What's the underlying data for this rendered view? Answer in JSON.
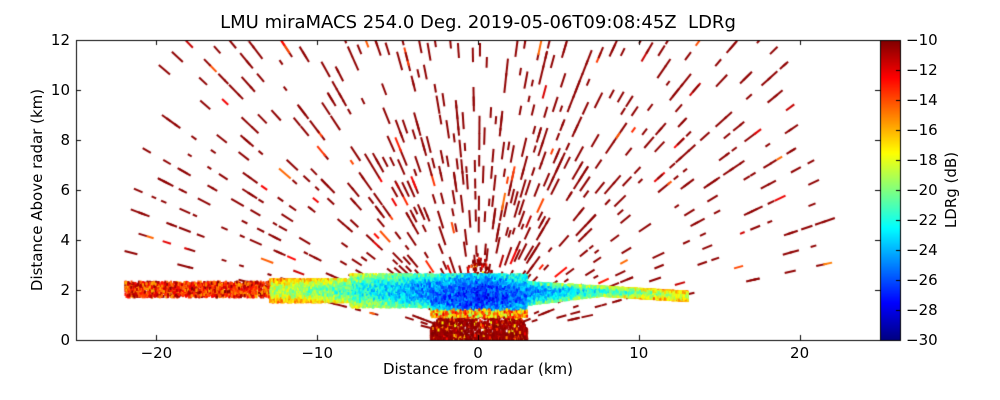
{
  "chart_data": {
    "type": "heatmap",
    "subtype": "radar RHI scan",
    "title": "LMU miraMACS 254.0 Deg. 2019-05-06T09:08:45Z  LDRg",
    "xlabel": "Distance from radar (km)",
    "ylabel": "Distance Above radar  (km)",
    "xlim": [
      -25,
      25
    ],
    "ylim": [
      0,
      12
    ],
    "xticks": [
      -20,
      -10,
      0,
      10,
      20
    ],
    "xtick_labels": [
      "−20",
      "−10",
      "0",
      "10",
      "20"
    ],
    "yticks": [
      0,
      2,
      4,
      6,
      8,
      10,
      12
    ],
    "ytick_labels": [
      "0",
      "2",
      "4",
      "6",
      "8",
      "10",
      "12"
    ],
    "grid": false,
    "colorbar": {
      "label": "LDRg (dB)",
      "colormap": "jet",
      "range": [
        -30,
        -10
      ],
      "ticks": [
        -10,
        -12,
        -14,
        -16,
        -18,
        -20,
        -22,
        -24,
        -26,
        -28,
        -30
      ],
      "tick_labels": [
        "−10",
        "−12",
        "−14",
        "−16",
        "−18",
        "−20",
        "−22",
        "−24",
        "−26",
        "−28",
        "−30"
      ]
    },
    "features": {
      "max_range_km": 22,
      "cloud_layer": {
        "x_range_km": [
          -22,
          13
        ],
        "base_km": 1.3,
        "top_km": 2.6,
        "core_ldr_db": -27,
        "edge_ldr_db": -18
      },
      "near_radar_clutter": {
        "x_range_km": [
          -3,
          3
        ],
        "height_km": [
          0,
          3.6
        ],
        "ldr_db": -10
      },
      "background_noise_ldr_db": -10
    }
  }
}
